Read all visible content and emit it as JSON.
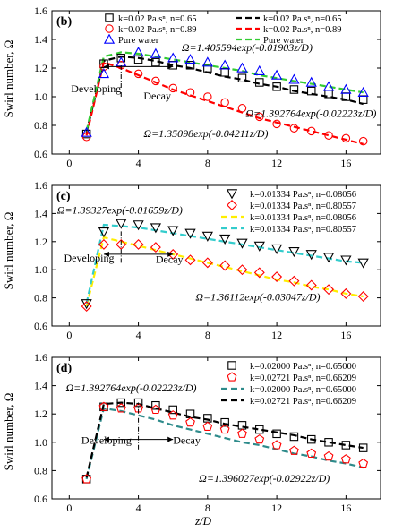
{
  "figure": {
    "xlabel": "z/D",
    "ylabel": "Swirl number, Ω"
  },
  "chart_data": [
    {
      "type": "scatter",
      "panel_label": "(b)",
      "xlim": [
        -1,
        18
      ],
      "ylim": [
        0.6,
        1.6
      ],
      "xticks": [
        0,
        4,
        8,
        12,
        16
      ],
      "yticks": [
        0.6,
        0.8,
        1.0,
        1.2,
        1.4,
        1.6
      ],
      "tick_labels_x": [
        "0",
        "4",
        "8",
        "12",
        "16"
      ],
      "tick_labels_y": [
        "0.6",
        "0.8",
        "1.0",
        "1.2",
        "1.4",
        "1.6"
      ],
      "grid": false,
      "legend_position": "top",
      "series": [
        {
          "name": "k=0.02 Pa.sⁿ, n=0.65",
          "marker": "square",
          "color": "#000000",
          "x": [
            1,
            2,
            3,
            4,
            5,
            6,
            7,
            8,
            9,
            10,
            11,
            12,
            13,
            14,
            15,
            16,
            17
          ],
          "y": [
            0.74,
            1.23,
            1.27,
            1.26,
            1.24,
            1.22,
            1.22,
            1.2,
            1.17,
            1.13,
            1.1,
            1.07,
            1.05,
            1.04,
            1.02,
            1.0,
            0.98
          ]
        },
        {
          "name": "k=0.02 Pa.sⁿ, n=0.89",
          "marker": "circle",
          "color": "#ff0000",
          "x": [
            1,
            2,
            3,
            4,
            5,
            6,
            7,
            8,
            9,
            10,
            11,
            12,
            13,
            14,
            15,
            16,
            17
          ],
          "y": [
            0.72,
            1.21,
            1.22,
            1.16,
            1.11,
            1.06,
            1.03,
            1.0,
            0.96,
            0.92,
            0.86,
            0.81,
            0.78,
            0.76,
            0.73,
            0.71,
            0.69
          ]
        },
        {
          "name": "Pure water",
          "marker": "triangle",
          "color": "#0000ff",
          "x": [
            1,
            2,
            3,
            4,
            5,
            6,
            7,
            8,
            9,
            10,
            11,
            12,
            13,
            14,
            15,
            16,
            17
          ],
          "y": [
            0.75,
            1.16,
            1.24,
            1.31,
            1.3,
            1.27,
            1.26,
            1.24,
            1.22,
            1.2,
            1.18,
            1.15,
            1.12,
            1.1,
            1.07,
            1.05,
            1.03
          ]
        },
        {
          "name": "k=0.02 Pa.sⁿ, n=0.65",
          "line_style": "dashed",
          "color": "#000000",
          "x": [
            1,
            2,
            3,
            4,
            5,
            6,
            7,
            8,
            9,
            10,
            11,
            12,
            13,
            14,
            15,
            16,
            17
          ],
          "y": [
            0.75,
            1.25,
            1.28,
            1.27,
            1.25,
            1.22,
            1.2,
            1.17,
            1.14,
            1.12,
            1.09,
            1.07,
            1.04,
            1.02,
            1.0,
            0.98,
            0.95
          ]
        },
        {
          "name": "k=0.02 Pa.sⁿ, n=0.89",
          "line_style": "dashed",
          "color": "#ff0000",
          "x": [
            1,
            2,
            3,
            4,
            5,
            6,
            7,
            8,
            9,
            10,
            11,
            12,
            13,
            14,
            15,
            16,
            17
          ],
          "y": [
            0.73,
            1.24,
            1.2,
            1.15,
            1.1,
            1.05,
            1.01,
            0.97,
            0.93,
            0.89,
            0.85,
            0.82,
            0.79,
            0.76,
            0.73,
            0.7,
            0.67
          ]
        },
        {
          "name": "Pure water",
          "line_style": "dashed",
          "color": "#33cc33",
          "x": [
            1,
            2,
            3,
            4,
            5,
            6,
            7,
            8,
            9,
            10,
            11,
            12,
            13,
            14,
            15,
            16,
            17
          ],
          "y": [
            0.76,
            1.28,
            1.31,
            1.3,
            1.28,
            1.26,
            1.24,
            1.22,
            1.2,
            1.18,
            1.15,
            1.13,
            1.11,
            1.09,
            1.07,
            1.05,
            1.03
          ]
        }
      ],
      "annotations": [
        {
          "text": "Ω=1.405594exp(-0.01903z/D)",
          "x": 6.5,
          "y": 1.32,
          "anchor": "start"
        },
        {
          "text": "Ω=1.392764exp(-0.02223z/D)",
          "x": 10.2,
          "y": 0.86,
          "anchor": "start"
        },
        {
          "text": "Ω=1.35098exp(-0.04211z/D)",
          "x": 4.3,
          "y": 0.72,
          "anchor": "start"
        },
        {
          "text": "Developing",
          "x": 0.1,
          "y": 1.03,
          "anchor": "start"
        },
        {
          "text": "Decay",
          "x": 4.3,
          "y": 0.98,
          "anchor": "start"
        }
      ],
      "marks": {
        "arrow_y": 1.21,
        "arrow_x_start": 2.0,
        "arrow_x_end": 6.0,
        "divider_x": 3.0,
        "divider_y": [
          1.0,
          1.22
        ]
      }
    },
    {
      "type": "scatter",
      "panel_label": "(c)",
      "xlim": [
        -1,
        18
      ],
      "ylim": [
        0.6,
        1.6
      ],
      "xticks": [
        0,
        4,
        8,
        12,
        16
      ],
      "yticks": [
        0.6,
        0.8,
        1.0,
        1.2,
        1.4,
        1.6
      ],
      "tick_labels_x": [
        "0",
        "4",
        "8",
        "12",
        "16"
      ],
      "tick_labels_y": [
        "0.6",
        "0.8",
        "1.0",
        "1.2",
        "1.4",
        "1.6"
      ],
      "grid": false,
      "legend_position": "top-right",
      "series": [
        {
          "name": "k=0.01334 Pa.sⁿ, n=0.08056",
          "marker": "triangle-down",
          "color": "#000000",
          "x": [
            1,
            2,
            3,
            4,
            5,
            6,
            7,
            8,
            9,
            10,
            11,
            12,
            13,
            14,
            15,
            16,
            17
          ],
          "y": [
            0.76,
            1.27,
            1.33,
            1.32,
            1.3,
            1.28,
            1.26,
            1.24,
            1.22,
            1.19,
            1.17,
            1.15,
            1.13,
            1.11,
            1.09,
            1.07,
            1.05
          ]
        },
        {
          "name": "k=0.01334 Pa.sⁿ, n=0.80557",
          "marker": "diamond",
          "color": "#ff0000",
          "x": [
            1,
            2,
            3,
            4,
            5,
            6,
            7,
            8,
            9,
            10,
            11,
            12,
            13,
            14,
            15,
            16,
            17
          ],
          "y": [
            0.74,
            1.18,
            1.18,
            1.18,
            1.16,
            1.11,
            1.07,
            1.05,
            1.03,
            1.0,
            0.98,
            0.95,
            0.92,
            0.89,
            0.86,
            0.83,
            0.81
          ]
        },
        {
          "name": "k=0.01334 Pa.sⁿ, n=0.08056",
          "line_style": "dashed",
          "color": "#ffee00",
          "x": [
            1,
            2,
            3,
            4,
            5,
            6,
            7,
            8,
            9,
            10,
            11,
            12,
            13,
            14,
            15,
            16,
            17
          ],
          "y": [
            0.74,
            1.23,
            1.2,
            1.17,
            1.14,
            1.11,
            1.08,
            1.05,
            1.02,
            0.99,
            0.96,
            0.93,
            0.91,
            0.88,
            0.86,
            0.83,
            0.81
          ]
        },
        {
          "name": "k=0.01334 Pa.sⁿ, n=0.80557",
          "line_style": "dashed",
          "color": "#33cccc",
          "x": [
            1,
            2,
            3,
            4,
            5,
            6,
            7,
            8,
            9,
            10,
            11,
            12,
            13,
            14,
            15,
            16,
            17
          ],
          "y": [
            0.76,
            1.32,
            1.31,
            1.3,
            1.28,
            1.26,
            1.24,
            1.22,
            1.2,
            1.18,
            1.16,
            1.14,
            1.12,
            1.1,
            1.08,
            1.06,
            1.05
          ]
        }
      ],
      "annotations": [
        {
          "text": "Ω=1.39327exp(-0.01659z/D)",
          "x": -0.7,
          "y": 1.4,
          "anchor": "start"
        },
        {
          "text": "Ω=1.36112exp(-0.03047z/D)",
          "x": 7.3,
          "y": 0.78,
          "anchor": "start"
        },
        {
          "text": "Developing",
          "x": -0.3,
          "y": 1.06,
          "anchor": "start"
        },
        {
          "text": "Decay",
          "x": 5.0,
          "y": 1.05,
          "anchor": "start"
        }
      ],
      "marks": {
        "arrow_y": 1.11,
        "arrow_x_start": 2.0,
        "arrow_x_end": 6.0,
        "divider_x": 3.0,
        "divider_y": [
          1.05,
          1.28
        ]
      }
    },
    {
      "type": "scatter",
      "panel_label": "(d)",
      "xlim": [
        -1,
        18
      ],
      "ylim": [
        0.6,
        1.6
      ],
      "xticks": [
        0,
        4,
        8,
        12,
        16
      ],
      "yticks": [
        0.6,
        0.8,
        1.0,
        1.2,
        1.4,
        1.6
      ],
      "tick_labels_x": [
        "0",
        "4",
        "8",
        "12",
        "16"
      ],
      "tick_labels_y": [
        "0.6",
        "0.8",
        "1.0",
        "1.2",
        "1.4",
        "1.6"
      ],
      "grid": false,
      "legend_position": "top-right",
      "series": [
        {
          "name": "k=0.02000 Pa.sⁿ, n=0.65000",
          "marker": "square",
          "color": "#000000",
          "x": [
            1,
            2,
            3,
            4,
            5,
            6,
            7,
            8,
            9,
            10,
            11,
            12,
            13,
            14,
            15,
            16,
            17
          ],
          "y": [
            0.74,
            1.25,
            1.28,
            1.28,
            1.26,
            1.23,
            1.2,
            1.17,
            1.14,
            1.12,
            1.09,
            1.06,
            1.04,
            1.02,
            1.0,
            0.98,
            0.96
          ]
        },
        {
          "name": "k=0.02721 Pa.sⁿ, n=0.66209",
          "marker": "pentagon",
          "color": "#ff0000",
          "x": [
            1,
            2,
            3,
            4,
            5,
            6,
            7,
            8,
            9,
            10,
            11,
            12,
            13,
            14,
            15,
            16,
            17
          ],
          "y": [
            0.74,
            1.25,
            1.24,
            1.24,
            1.23,
            1.19,
            1.14,
            1.11,
            1.09,
            1.06,
            1.02,
            0.98,
            0.94,
            0.92,
            0.9,
            0.88,
            0.85
          ]
        },
        {
          "name": "k=0.02000 Pa.sⁿ, n=0.65000",
          "line_style": "dashed",
          "color": "#2e8b8b",
          "x": [
            1,
            2,
            3,
            4,
            5,
            6,
            7,
            8,
            9,
            10,
            11,
            12,
            13,
            14,
            15,
            16,
            17
          ],
          "y": [
            0.74,
            1.24,
            1.22,
            1.19,
            1.16,
            1.12,
            1.09,
            1.06,
            1.03,
            1.0,
            0.98,
            0.95,
            0.92,
            0.9,
            0.87,
            0.85,
            0.82
          ]
        },
        {
          "name": "k=0.02721 Pa.sⁿ, n=0.66209",
          "line_style": "dashed",
          "color": "#000000",
          "x": [
            1,
            2,
            3,
            4,
            5,
            6,
            7,
            8,
            9,
            10,
            11,
            12,
            13,
            14,
            15,
            16,
            17
          ],
          "y": [
            0.75,
            1.27,
            1.28,
            1.27,
            1.24,
            1.21,
            1.18,
            1.16,
            1.13,
            1.11,
            1.09,
            1.07,
            1.05,
            1.02,
            1.0,
            0.98,
            0.96
          ]
        }
      ],
      "annotations": [
        {
          "text": "Ω=1.392764exp(-0.02223z/D)",
          "x": -0.2,
          "y": 1.36,
          "anchor": "start"
        },
        {
          "text": "Ω=1.396027exp(-0.02922z/D)",
          "x": 7.5,
          "y": 0.72,
          "anchor": "start"
        },
        {
          "text": "Developing",
          "x": 0.7,
          "y": 0.99,
          "anchor": "start"
        },
        {
          "text": "Decay",
          "x": 6.0,
          "y": 0.99,
          "anchor": "start"
        }
      ],
      "marks": {
        "arrow_y": 1.02,
        "arrow_x_start": 2.0,
        "arrow_x_end": 6.0,
        "divider_x": 4.0,
        "divider_y": [
          0.95,
          1.28
        ]
      }
    }
  ]
}
